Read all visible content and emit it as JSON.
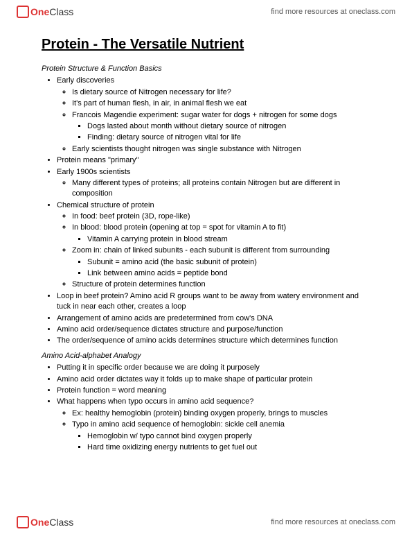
{
  "branding": {
    "logo_one": "One",
    "logo_class": "Class",
    "link_text": "find more resources at oneclass.com"
  },
  "doc": {
    "title": "Protein - The Versatile Nutrient",
    "section1_title": "Protein Structure & Function Basics",
    "s1": {
      "b1": "Early discoveries",
      "b1_1": "Is dietary source of Nitrogen necessary for life?",
      "b1_2": "It's part of human flesh, in air, in animal flesh we eat",
      "b1_3": "Francois Magendie experiment: sugar water for dogs + nitrogen for some dogs",
      "b1_3_1": "Dogs lasted about month without dietary source of nitrogen",
      "b1_3_2": "Finding: dietary source of nitrogen vital for life",
      "b1_4": "Early scientists thought nitrogen was single substance with Nitrogen",
      "b2": "Protein means \"primary\"",
      "b3": "Early 1900s scientists",
      "b3_1": "Many different types of proteins; all proteins contain Nitrogen but are different in composition",
      "b4": "Chemical structure of protein",
      "b4_1": "In food: beef protein (3D, rope-like)",
      "b4_2": "In blood: blood protein (opening at top = spot for vitamin A to fit)",
      "b4_2_1": "Vitamin A carrying protein in blood stream",
      "b4_3": "Zoom in: chain of linked subunits - each subunit is different from surrounding",
      "b4_3_1": "Subunit = amino acid (the basic subunit of protein)",
      "b4_3_2": "Link between amino acids = peptide bond",
      "b4_4": "Structure of protein determines function",
      "b5": "Loop in beef protein? Amino acid R groups want to be away from watery environment and tuck in near each other, creates a loop",
      "b6": "Arrangement of amino acids are predetermined from cow's DNA",
      "b7": "Amino acid order/sequence dictates structure and purpose/function",
      "b8": "The order/sequence of amino acids determines structure which determines function"
    },
    "section2_title": "Amino Acid-alphabet Analogy",
    "s2": {
      "b1": "Putting it in specific order because we are doing it purposely",
      "b2": "Amino acid order dictates way it folds up to make shape of particular protein",
      "b3": "Protein function = word meaning",
      "b4": "What happens when typo occurs in amino acid sequence?",
      "b4_1": "Ex: healthy hemoglobin (protein) binding oxygen properly, brings to muscles",
      "b4_2": "Typo in amino acid sequence of hemoglobin: sickle cell anemia",
      "b4_2_1": "Hemoglobin w/ typo cannot bind oxygen properly",
      "b4_2_2": "Hard time oxidizing energy nutrients to get fuel out"
    }
  }
}
